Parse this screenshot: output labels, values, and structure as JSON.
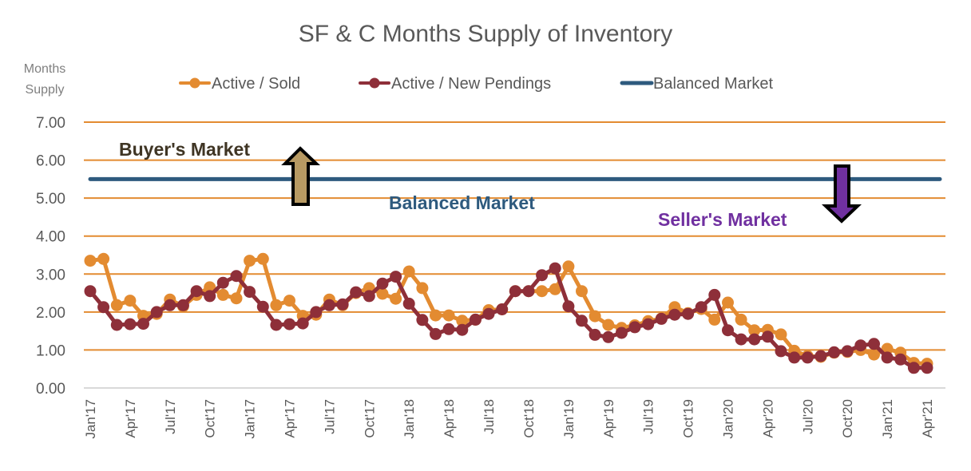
{
  "chart_data": {
    "type": "line",
    "title": "SF & C Months Supply of Inventory",
    "ylabel": "Months Supply",
    "xlabel": "",
    "ylim": [
      0,
      7
    ],
    "yticks": [
      "0.00",
      "1.00",
      "2.00",
      "3.00",
      "4.00",
      "5.00",
      "6.00",
      "7.00"
    ],
    "ytick_values": [
      0,
      1,
      2,
      3,
      4,
      5,
      6,
      7
    ],
    "grid": true,
    "legend_position": "top",
    "point_count": 64,
    "x_tick_every": 3,
    "x_tick_labels": [
      "Jan'17",
      "Apr'17",
      "Jul'17",
      "Oct'17",
      "Jan'17",
      "Apr'17",
      "Jul'17",
      "Oct'17",
      "Jan'18",
      "Apr'18",
      "Jul'18",
      "Oct'18",
      "Jan'19",
      "Apr'19",
      "Jul'19",
      "Oct'19",
      "Jan'20",
      "Apr'20",
      "Jul'20",
      "Oct'20",
      "Jan'21",
      "Apr'21"
    ],
    "series": [
      {
        "name": "Active / Sold",
        "color": "#e38b31",
        "markers": true,
        "values": [
          3.35,
          3.4,
          2.18,
          2.3,
          1.9,
          1.95,
          2.33,
          2.15,
          2.45,
          2.65,
          2.45,
          2.36,
          3.35,
          3.4,
          2.18,
          2.3,
          1.9,
          1.93,
          2.33,
          2.18,
          2.5,
          2.63,
          2.48,
          2.35,
          3.07,
          2.63,
          1.91,
          1.91,
          1.77,
          1.8,
          2.05,
          2.07,
          2.55,
          2.55,
          2.55,
          2.6,
          3.2,
          2.55,
          1.89,
          1.66,
          1.58,
          1.65,
          1.76,
          1.83,
          2.13,
          1.97,
          2.08,
          1.8,
          2.25,
          1.8,
          1.52,
          1.53,
          1.41,
          0.98,
          0.84,
          0.82,
          0.93,
          0.95,
          1.0,
          0.88,
          1.03,
          0.93,
          0.66,
          0.64
        ]
      },
      {
        "name": "Active / New Pendings",
        "color": "#8e2f39",
        "markers": true,
        "values": [
          2.55,
          2.13,
          1.66,
          1.68,
          1.69,
          2.0,
          2.18,
          2.18,
          2.55,
          2.42,
          2.77,
          2.95,
          2.53,
          2.14,
          1.66,
          1.68,
          1.7,
          2.0,
          2.18,
          2.2,
          2.52,
          2.42,
          2.75,
          2.93,
          2.22,
          1.79,
          1.42,
          1.55,
          1.53,
          1.8,
          1.95,
          2.07,
          2.55,
          2.55,
          2.97,
          3.15,
          2.15,
          1.77,
          1.4,
          1.34,
          1.45,
          1.6,
          1.68,
          1.82,
          1.93,
          1.95,
          2.13,
          2.45,
          1.52,
          1.28,
          1.28,
          1.35,
          0.97,
          0.8,
          0.8,
          0.84,
          0.94,
          0.97,
          1.12,
          1.16,
          0.8,
          0.75,
          0.53,
          0.53
        ]
      },
      {
        "name": "Balanced Market",
        "color": "#2e5a7e",
        "markers": false,
        "constant": 5.5
      }
    ],
    "annotations": [
      {
        "text": "Buyer's Market",
        "color": "#3f3524"
      },
      {
        "text": "Balanced Market",
        "color": "#2e5a7e"
      },
      {
        "text": "Seller's Market",
        "color": "#7030a0"
      }
    ],
    "arrows": [
      {
        "direction": "up",
        "fill": "#b89a63",
        "meaning": "toward Buyer's Market"
      },
      {
        "direction": "down",
        "fill": "#7030a0",
        "meaning": "toward Seller's Market"
      }
    ],
    "gridline_color": "#e38b31",
    "baseline_color": "#d9d9d9"
  }
}
